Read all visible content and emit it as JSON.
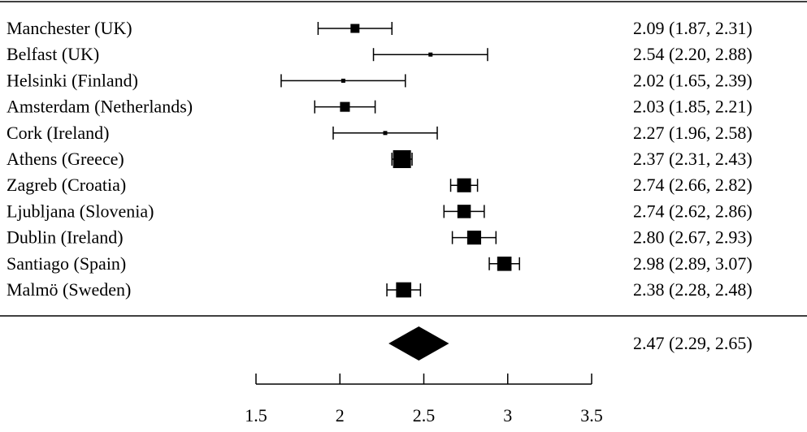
{
  "chart_data": {
    "type": "forest",
    "title": "",
    "xlabel": "",
    "ylabel": "",
    "xlim": [
      1.5,
      3.5
    ],
    "xticks": [
      1.5,
      2,
      2.5,
      3,
      3.5
    ],
    "xtick_labels": [
      "1.5",
      "2",
      "2.5",
      "3",
      "3.5"
    ],
    "grid": false,
    "colors": {
      "ink": "#000000",
      "background": "#ffffff"
    },
    "studies": [
      {
        "label": "Manchester (UK)",
        "estimate": 2.09,
        "lower": 1.87,
        "upper": 2.31,
        "weight": 0.5,
        "text": "2.09  (1.87, 2.31)"
      },
      {
        "label": "Belfast (UK)",
        "estimate": 2.54,
        "lower": 2.2,
        "upper": 2.88,
        "weight": 0.15,
        "text": "2.54  (2.20, 2.88)"
      },
      {
        "label": "Helsinki (Finland)",
        "estimate": 2.02,
        "lower": 1.65,
        "upper": 2.39,
        "weight": 0.1,
        "text": "2.02  (1.65, 2.39)"
      },
      {
        "label": "Amsterdam (Netherlands)",
        "estimate": 2.03,
        "lower": 1.85,
        "upper": 2.21,
        "weight": 0.55,
        "text": "2.03  (1.85, 2.21)"
      },
      {
        "label": "Cork (Ireland)",
        "estimate": 2.27,
        "lower": 1.96,
        "upper": 2.58,
        "weight": 0.2,
        "text": "2.27  (1.96, 2.58)"
      },
      {
        "label": "Athens (Greece)",
        "estimate": 2.37,
        "lower": 2.31,
        "upper": 2.43,
        "weight": 1.0,
        "text": "2.37  (2.31, 2.43)"
      },
      {
        "label": "Zagreb (Croatia)",
        "estimate": 2.74,
        "lower": 2.66,
        "upper": 2.82,
        "weight": 0.78,
        "text": "2.74  (2.66, 2.82)"
      },
      {
        "label": "Ljubljana (Slovenia)",
        "estimate": 2.74,
        "lower": 2.62,
        "upper": 2.86,
        "weight": 0.75,
        "text": "2.74  (2.62, 2.86)"
      },
      {
        "label": "Dublin (Ireland)",
        "estimate": 2.8,
        "lower": 2.67,
        "upper": 2.93,
        "weight": 0.78,
        "text": "2.80  (2.67, 2.93)"
      },
      {
        "label": "Santiago (Spain)",
        "estimate": 2.98,
        "lower": 2.89,
        "upper": 3.07,
        "weight": 0.8,
        "text": "2.98  (2.89, 3.07)"
      },
      {
        "label": "Malmö (Sweden)",
        "estimate": 2.38,
        "lower": 2.28,
        "upper": 2.48,
        "weight": 0.85,
        "text": "2.38  (2.28, 2.48)"
      }
    ],
    "pooled": {
      "estimate": 2.47,
      "lower": 2.29,
      "upper": 2.65,
      "text": "2.47  (2.29, 2.65)"
    }
  }
}
